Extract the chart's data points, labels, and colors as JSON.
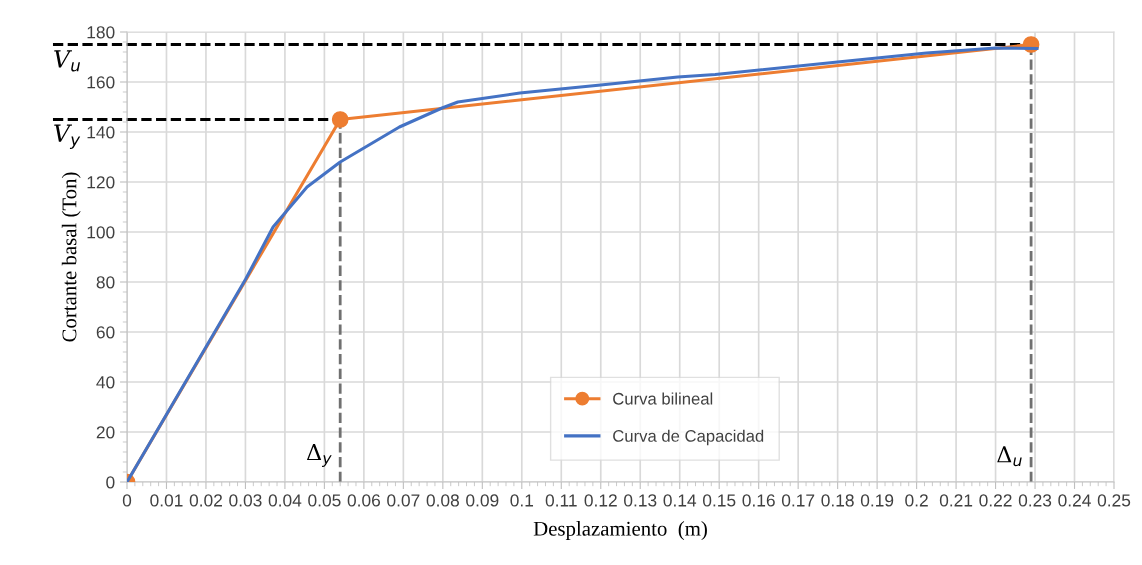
{
  "chart_data": {
    "type": "line",
    "xlabel": "Desplazamiento  (m)",
    "ylabel": "Cortante basal (Ton)",
    "series": [
      {
        "name": "Curva bilineal",
        "color": "#ed7d31",
        "marker": "circle",
        "x": [
          0,
          0.054,
          0.229
        ],
        "values": [
          0,
          145,
          175
        ]
      },
      {
        "name": "Curva de Capacidad",
        "color": "#4472c4",
        "marker": "none",
        "x": [
          0,
          0.01,
          0.02,
          0.03,
          0.037,
          0.0456,
          0.054,
          0.069,
          0.0798,
          0.0838,
          0.0995,
          0.12,
          0.1395,
          0.149,
          0.18,
          0.2025,
          0.22,
          0.2305
        ],
        "values": [
          0,
          27,
          54,
          81,
          102,
          118,
          128,
          142,
          149.6,
          152,
          155.6,
          158.8,
          162,
          163,
          168,
          171.6,
          173.6,
          173.4
        ]
      }
    ],
    "xlim": [
      0,
      0.25
    ],
    "xticks": [
      0,
      0.01,
      0.02,
      0.03,
      0.04,
      0.05,
      0.06,
      0.07,
      0.08,
      0.09,
      0.1,
      0.11,
      0.12,
      0.13,
      0.14,
      0.15,
      0.16,
      0.17,
      0.18,
      0.19,
      0.2,
      0.21,
      0.22,
      0.23,
      0.24,
      0.25
    ],
    "ylim": [
      0,
      180
    ],
    "yticks": [
      0,
      20,
      40,
      60,
      80,
      100,
      120,
      140,
      160,
      180
    ],
    "ref_lines": [
      {
        "axis": "y",
        "value": 175,
        "label": "V$_{u}$",
        "color": "#000000",
        "line_style": "dashed"
      },
      {
        "axis": "y",
        "value": 145,
        "label": "V$_{y}$",
        "color": "#000000",
        "line_style": "dashed"
      },
      {
        "axis": "x",
        "value": 0.054,
        "label": "Δ$_{y}$",
        "color": "#707070",
        "line_style": "dashed"
      },
      {
        "axis": "x",
        "value": 0.229,
        "label": "Δ$_{u}$",
        "color": "#707070",
        "line_style": "dashed"
      }
    ],
    "grid": true,
    "legend": "bottom",
    "line_style": "solid"
  }
}
